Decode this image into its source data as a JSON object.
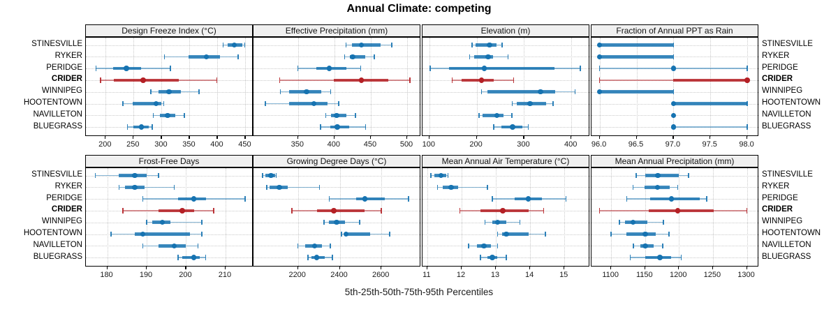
{
  "title": "Annual Climate: competing",
  "caption": "5th-25th-50th-75th-95th Percentiles",
  "cities": [
    "STINESVILLE",
    "RYKER",
    "PERIDGE",
    "CRIDER",
    "WINNIPEG",
    "HOOTENTOWN",
    "NAVILLETON",
    "BLUEGRASS"
  ],
  "highlight_city": "CRIDER",
  "colors": {
    "series_blue": "#1673b1",
    "series_red": "#b42025",
    "grid": "#c9c9c9",
    "strip_bg": "#f0f0f0",
    "border": "#000000"
  },
  "percentiles_shown": [
    5,
    25,
    50,
    75,
    95
  ],
  "chart_data": [
    {
      "type": "interval-dotplot",
      "row": 0,
      "col": 0,
      "title": "Design Freeze Index (°C)",
      "xlim": [
        164.6,
        464.5
      ],
      "ticks": [
        200,
        250,
        300,
        350,
        400,
        450
      ],
      "tick_labels": [
        "200",
        "250",
        "300",
        "350",
        "400",
        "450"
      ],
      "series": [
        {
          "city": "STINESVILLE",
          "values": [
            410,
            418,
            430,
            444,
            449
          ]
        },
        {
          "city": "RYKER",
          "values": [
            305,
            348,
            380,
            404,
            437
          ]
        },
        {
          "city": "PERIDGE",
          "values": [
            183,
            213,
            237,
            263,
            316
          ]
        },
        {
          "city": "CRIDER",
          "values": [
            191,
            215,
            267,
            331,
            399
          ]
        },
        {
          "city": "WINNIPEG",
          "values": [
            281,
            295,
            313,
            335,
            367
          ]
        },
        {
          "city": "HOOTENTOWN",
          "values": [
            231,
            248,
            290,
            300,
            304
          ]
        },
        {
          "city": "NAVILLETON",
          "values": [
            285,
            297,
            311,
            325,
            341
          ]
        },
        {
          "city": "BLUEGRASS",
          "values": [
            239,
            250,
            264,
            277,
            283
          ]
        }
      ]
    },
    {
      "type": "interval-dotplot",
      "row": 0,
      "col": 1,
      "title": "Effective Precipitation (mm)",
      "xlim": [
        288.8,
        519.2
      ],
      "ticks": [
        350,
        400,
        450,
        500
      ],
      "tick_labels": [
        "350",
        "400",
        "450",
        "500"
      ],
      "series": [
        {
          "city": "STINESVILLE",
          "values": [
            416,
            424,
            437,
            464,
            479
          ]
        },
        {
          "city": "RYKER",
          "values": [
            414,
            421,
            425,
            442,
            455
          ]
        },
        {
          "city": "PERIDGE",
          "values": [
            350,
            375,
            393,
            417,
            436
          ]
        },
        {
          "city": "CRIDER",
          "values": [
            325,
            399,
            437,
            474,
            504
          ]
        },
        {
          "city": "WINNIPEG",
          "values": [
            326,
            338,
            362,
            382,
            395
          ]
        },
        {
          "city": "HOOTENTOWN",
          "values": [
            305,
            338,
            372,
            391,
            406
          ]
        },
        {
          "city": "NAVILLETON",
          "values": [
            388,
            395,
            403,
            417,
            429
          ]
        },
        {
          "city": "BLUEGRASS",
          "values": [
            381,
            394,
            404,
            420,
            443
          ]
        }
      ]
    },
    {
      "type": "interval-dotplot",
      "row": 0,
      "col": 2,
      "title": "Elevation (m)",
      "xlim": [
        85.6,
        439.5
      ],
      "ticks": [
        100,
        200,
        300,
        400
      ],
      "tick_labels": [
        "100",
        "200",
        "300",
        "400"
      ],
      "series": [
        {
          "city": "STINESVILLE",
          "values": [
            190,
            198,
            227,
            242,
            254
          ]
        },
        {
          "city": "RYKER",
          "values": [
            185,
            194,
            224,
            234,
            266
          ]
        },
        {
          "city": "PERIDGE",
          "values": [
            102,
            142,
            216,
            365,
            419
          ]
        },
        {
          "city": "CRIDER",
          "values": [
            148,
            168,
            210,
            236,
            278
          ]
        },
        {
          "city": "WINNIPEG",
          "values": [
            210,
            222,
            335,
            366,
            408
          ]
        },
        {
          "city": "HOOTENTOWN",
          "values": [
            275,
            284,
            313,
            346,
            361
          ]
        },
        {
          "city": "NAVILLETON",
          "values": [
            205,
            213,
            243,
            257,
            274
          ]
        },
        {
          "city": "BLUEGRASS",
          "values": [
            236,
            252,
            276,
            296,
            309
          ]
        }
      ]
    },
    {
      "type": "interval-dotplot",
      "row": 0,
      "col": 3,
      "title": "Fraction of Annual PPT as Rain",
      "xlim": [
        95.89,
        98.16
      ],
      "ticks": [
        96.0,
        96.5,
        97.0,
        97.5,
        98.0
      ],
      "tick_labels": [
        "96.0",
        "96.5",
        "97.0",
        "97.5",
        "98.0"
      ],
      "series": [
        {
          "city": "STINESVILLE",
          "values": [
            96,
            96,
            96,
            97,
            97
          ]
        },
        {
          "city": "RYKER",
          "values": [
            96,
            96,
            96,
            97,
            97
          ]
        },
        {
          "city": "PERIDGE",
          "values": [
            96,
            97,
            97,
            97,
            98
          ]
        },
        {
          "city": "CRIDER",
          "values": [
            96,
            97,
            98,
            98,
            98
          ]
        },
        {
          "city": "WINNIPEG",
          "values": [
            96,
            96,
            96,
            97,
            97
          ]
        },
        {
          "city": "HOOTENTOWN",
          "values": [
            97,
            97,
            97,
            98,
            98
          ]
        },
        {
          "city": "NAVILLETON",
          "values": [
            97,
            97,
            97,
            97,
            97
          ]
        },
        {
          "city": "BLUEGRASS",
          "values": [
            97,
            97,
            97,
            97,
            98
          ]
        }
      ]
    },
    {
      "type": "interval-dotplot",
      "row": 1,
      "col": 0,
      "title": "Frost-Free Days",
      "xlim": [
        174.6,
        217.1
      ],
      "ticks": [
        180,
        190,
        200,
        210
      ],
      "tick_labels": [
        "180",
        "190",
        "200",
        "210"
      ],
      "series": [
        {
          "city": "STINESVILLE",
          "values": [
            177,
            183,
            187,
            190,
            193
          ]
        },
        {
          "city": "RYKER",
          "values": [
            183,
            184.5,
            187,
            189.5,
            197
          ]
        },
        {
          "city": "PERIDGE",
          "values": [
            189,
            198,
            202,
            205,
            215
          ]
        },
        {
          "city": "CRIDER",
          "values": [
            184,
            193,
            199,
            202,
            207
          ]
        },
        {
          "city": "WINNIPEG",
          "values": [
            190,
            191.5,
            194,
            196,
            204
          ]
        },
        {
          "city": "HOOTENTOWN",
          "values": [
            181,
            187,
            189,
            201,
            204
          ]
        },
        {
          "city": "NAVILLETON",
          "values": [
            189,
            193,
            197,
            200,
            203
          ]
        },
        {
          "city": "BLUEGRASS",
          "values": [
            198,
            199,
            202,
            203.5,
            205
          ]
        }
      ]
    },
    {
      "type": "interval-dotplot",
      "row": 1,
      "col": 1,
      "title": "Growing Degree Days (°C)",
      "xlim": [
        1986.7,
        2790
      ],
      "ticks": [
        2200,
        2400,
        2600
      ],
      "tick_labels": [
        "2200",
        "2400",
        "2600"
      ],
      "series": [
        {
          "city": "STINESVILLE",
          "values": [
            2030,
            2045,
            2070,
            2090,
            2096
          ]
        },
        {
          "city": "RYKER",
          "values": [
            2050,
            2065,
            2110,
            2150,
            2303
          ]
        },
        {
          "city": "PERIDGE",
          "values": [
            2350,
            2480,
            2520,
            2615,
            2730
          ]
        },
        {
          "city": "CRIDER",
          "values": [
            2170,
            2290,
            2372,
            2520,
            2600
          ]
        },
        {
          "city": "WINNIPEG",
          "values": [
            2325,
            2348,
            2385,
            2425,
            2495
          ]
        },
        {
          "city": "HOOTENTOWN",
          "values": [
            2408,
            2420,
            2430,
            2545,
            2640
          ]
        },
        {
          "city": "NAVILLETON",
          "values": [
            2200,
            2235,
            2280,
            2315,
            2355
          ]
        },
        {
          "city": "BLUEGRASS",
          "values": [
            2248,
            2265,
            2290,
            2330,
            2365
          ]
        }
      ]
    },
    {
      "type": "interval-dotplot",
      "row": 1,
      "col": 2,
      "title": "Mean Annual Air Temperature (°C)",
      "xlim": [
        10.86,
        15.75
      ],
      "ticks": [
        11,
        12,
        13,
        14,
        15
      ],
      "tick_labels": [
        "11",
        "12",
        "13",
        "14",
        "15"
      ],
      "series": [
        {
          "city": "STINESVILLE",
          "values": [
            11.1,
            11.2,
            11.4,
            11.55,
            11.6
          ]
        },
        {
          "city": "RYKER",
          "values": [
            11.3,
            11.45,
            11.7,
            11.9,
            12.75
          ]
        },
        {
          "city": "PERIDGE",
          "values": [
            12.9,
            13.55,
            13.95,
            14.35,
            15.05
          ]
        },
        {
          "city": "CRIDER",
          "values": [
            11.95,
            12.55,
            13.2,
            13.95,
            14.4
          ]
        },
        {
          "city": "WINNIPEG",
          "values": [
            12.68,
            12.9,
            13.05,
            13.3,
            13.7
          ]
        },
        {
          "city": "HOOTENTOWN",
          "values": [
            13.05,
            13.18,
            13.3,
            13.95,
            14.45
          ]
        },
        {
          "city": "NAVILLETON",
          "values": [
            12.2,
            12.45,
            12.65,
            12.85,
            13.05
          ]
        },
        {
          "city": "BLUEGRASS",
          "values": [
            12.55,
            12.75,
            12.9,
            13.05,
            13.3
          ]
        }
      ]
    },
    {
      "type": "interval-dotplot",
      "row": 1,
      "col": 3,
      "title": "Mean Annual Precipitation (mm)",
      "xlim": [
        1071,
        1318
      ],
      "ticks": [
        1100,
        1150,
        1200,
        1250,
        1300
      ],
      "tick_labels": [
        "1100",
        "1150",
        "1200",
        "1250",
        "1300"
      ],
      "series": [
        {
          "city": "STINESVILLE",
          "values": [
            1137,
            1150,
            1169,
            1200,
            1214
          ]
        },
        {
          "city": "RYKER",
          "values": [
            1132,
            1149,
            1168,
            1186,
            1198
          ]
        },
        {
          "city": "PERIDGE",
          "values": [
            1123,
            1157,
            1189,
            1231,
            1241
          ]
        },
        {
          "city": "CRIDER",
          "values": [
            1083,
            1155,
            1198,
            1251,
            1300
          ]
        },
        {
          "city": "WINNIPEG",
          "values": [
            1112,
            1120,
            1132,
            1153,
            1177
          ]
        },
        {
          "city": "HOOTENTOWN",
          "values": [
            1100,
            1122,
            1150,
            1166,
            1185
          ]
        },
        {
          "city": "NAVILLETON",
          "values": [
            1133,
            1143,
            1150,
            1162,
            1176
          ]
        },
        {
          "city": "BLUEGRASS",
          "values": [
            1128,
            1150,
            1172,
            1188,
            1203
          ]
        }
      ]
    }
  ]
}
